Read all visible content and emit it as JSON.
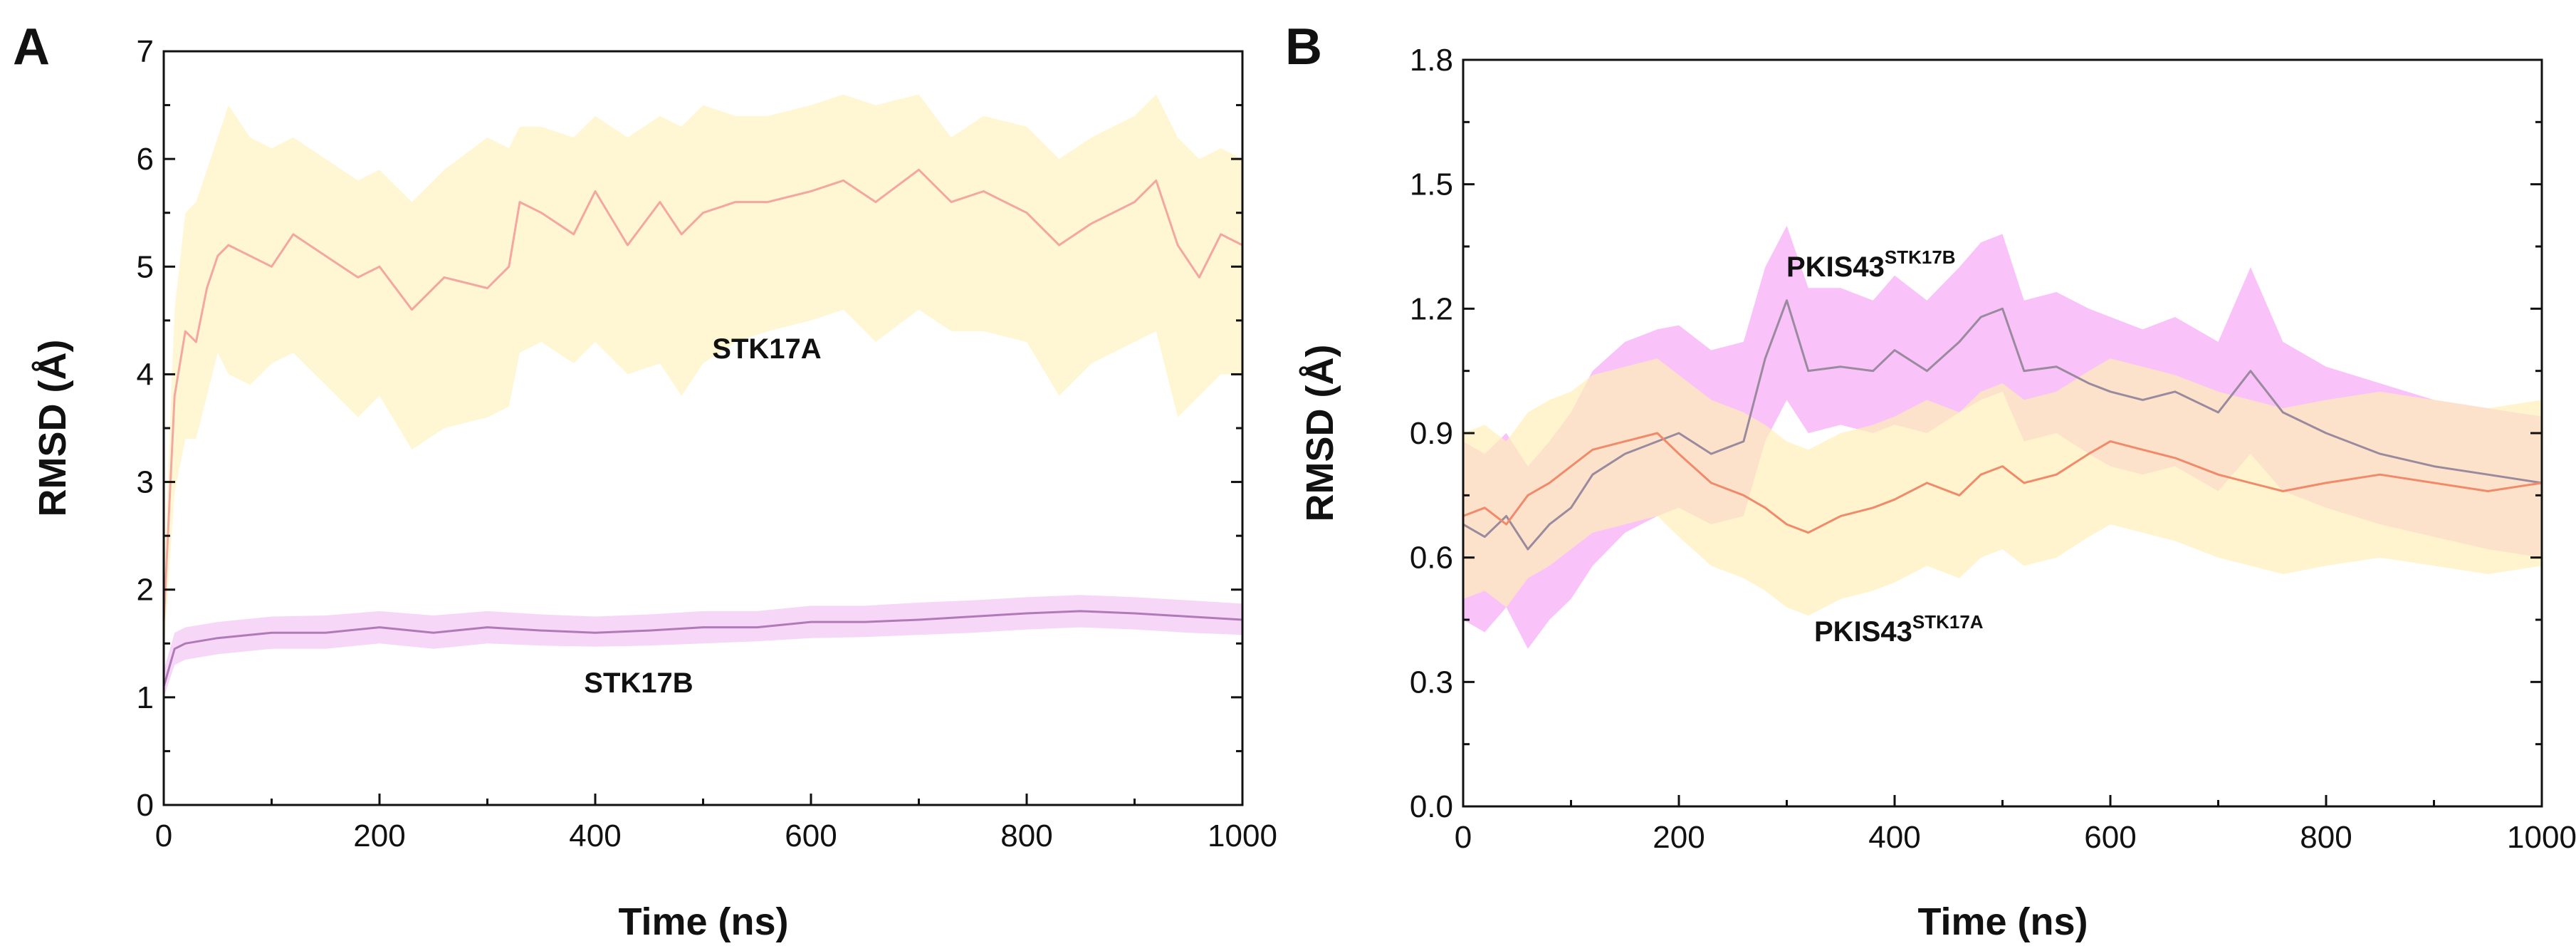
{
  "chart_data": [
    {
      "type": "line",
      "panel_label": "A",
      "title": "",
      "xlabel": "Time (ns)",
      "ylabel": "RMSD (Å)",
      "xlim": [
        0,
        1000
      ],
      "ylim": [
        0,
        7
      ],
      "x_ticks": [
        0,
        200,
        400,
        600,
        800,
        1000
      ],
      "x_tick_labels": [
        "0",
        "200",
        "400",
        "600",
        "800",
        "1000"
      ],
      "y_ticks": [
        0,
        1,
        2,
        3,
        4,
        5,
        6,
        7
      ],
      "y_tick_labels": [
        "0",
        "1",
        "2",
        "3",
        "4",
        "5",
        "6",
        "7"
      ],
      "grid": false,
      "series": [
        {
          "name": "STK17A",
          "label": "STK17A",
          "line_color": "#f4a6a0",
          "band_color": "#fff3c2",
          "x": [
            0,
            10,
            20,
            30,
            40,
            50,
            60,
            80,
            100,
            120,
            150,
            180,
            200,
            230,
            260,
            300,
            320,
            330,
            350,
            380,
            400,
            430,
            460,
            480,
            500,
            530,
            560,
            600,
            630,
            660,
            700,
            730,
            760,
            800,
            830,
            860,
            900,
            920,
            940,
            960,
            980,
            1000
          ],
          "values": [
            1.7,
            3.8,
            4.4,
            4.3,
            4.8,
            5.1,
            5.2,
            5.1,
            5.0,
            5.3,
            5.1,
            4.9,
            5.0,
            4.6,
            4.9,
            4.8,
            5.0,
            5.6,
            5.5,
            5.3,
            5.7,
            5.2,
            5.6,
            5.3,
            5.5,
            5.6,
            5.6,
            5.7,
            5.8,
            5.6,
            5.9,
            5.6,
            5.7,
            5.5,
            5.2,
            5.4,
            5.6,
            5.8,
            5.2,
            4.9,
            5.3,
            5.2
          ],
          "band_lower": [
            1.4,
            2.9,
            3.4,
            3.4,
            3.8,
            4.2,
            4.0,
            3.9,
            4.1,
            4.2,
            3.9,
            3.6,
            3.8,
            3.3,
            3.5,
            3.6,
            3.7,
            4.2,
            4.3,
            4.1,
            4.3,
            4.0,
            4.1,
            3.8,
            4.1,
            4.3,
            4.4,
            4.5,
            4.6,
            4.3,
            4.6,
            4.4,
            4.4,
            4.3,
            3.8,
            4.1,
            4.3,
            4.4,
            3.6,
            3.8,
            4.0,
            4.0
          ],
          "band_upper": [
            2.1,
            4.6,
            5.5,
            5.6,
            5.9,
            6.2,
            6.5,
            6.2,
            6.1,
            6.2,
            6.0,
            5.8,
            5.9,
            5.6,
            5.9,
            6.2,
            6.1,
            6.3,
            6.3,
            6.2,
            6.4,
            6.2,
            6.4,
            6.3,
            6.5,
            6.4,
            6.4,
            6.5,
            6.6,
            6.5,
            6.6,
            6.2,
            6.4,
            6.3,
            6.0,
            6.2,
            6.4,
            6.6,
            6.2,
            6.0,
            6.1,
            6.0
          ]
        },
        {
          "name": "STK17B",
          "label": "STK17B",
          "line_color": "#b07ab8",
          "band_color": "#f2c6f4",
          "x": [
            0,
            10,
            20,
            50,
            100,
            150,
            200,
            250,
            300,
            350,
            400,
            450,
            500,
            550,
            600,
            650,
            700,
            750,
            800,
            850,
            900,
            950,
            1000
          ],
          "values": [
            1.1,
            1.45,
            1.5,
            1.55,
            1.6,
            1.6,
            1.65,
            1.6,
            1.65,
            1.62,
            1.6,
            1.62,
            1.65,
            1.65,
            1.7,
            1.7,
            1.72,
            1.75,
            1.78,
            1.8,
            1.78,
            1.75,
            1.72
          ],
          "band_lower": [
            1.0,
            1.3,
            1.35,
            1.4,
            1.45,
            1.45,
            1.5,
            1.45,
            1.5,
            1.48,
            1.47,
            1.48,
            1.5,
            1.52,
            1.55,
            1.56,
            1.58,
            1.6,
            1.63,
            1.65,
            1.63,
            1.6,
            1.58
          ],
          "band_upper": [
            1.25,
            1.6,
            1.65,
            1.7,
            1.75,
            1.76,
            1.8,
            1.76,
            1.8,
            1.77,
            1.75,
            1.77,
            1.8,
            1.8,
            1.85,
            1.85,
            1.88,
            1.9,
            1.93,
            1.95,
            1.93,
            1.9,
            1.87
          ]
        }
      ],
      "annotations": [
        {
          "name": "annotation-stk17a",
          "text": "STK17A",
          "x": 560,
          "y": 4.2
        },
        {
          "name": "annotation-stk17b",
          "text": "STK17B",
          "x": 440,
          "y": 1.0
        }
      ]
    },
    {
      "type": "line",
      "panel_label": "B",
      "title": "",
      "xlabel": "Time (ns)",
      "ylabel": "RMSD (Å)",
      "xlim": [
        0,
        1000
      ],
      "ylim": [
        0,
        1.8
      ],
      "x_ticks": [
        0,
        200,
        400,
        600,
        800,
        1000
      ],
      "x_tick_labels": [
        "0",
        "200",
        "400",
        "600",
        "800",
        "1000"
      ],
      "y_ticks": [
        0,
        0.3,
        0.6,
        0.9,
        1.2,
        1.5,
        1.8
      ],
      "y_tick_labels": [
        "0.0",
        "0.3",
        "0.6",
        "0.9",
        "1.2",
        "1.5",
        "1.8"
      ],
      "grid": false,
      "series": [
        {
          "name": "PKIS43 (STK17B)",
          "label_main": "PKIS43",
          "label_sup": "STK17B",
          "line_color": "#9a8a9e",
          "band_color": "#f6a8f6",
          "x": [
            0,
            20,
            40,
            60,
            80,
            100,
            120,
            150,
            180,
            200,
            230,
            260,
            280,
            300,
            320,
            350,
            380,
            400,
            430,
            460,
            480,
            500,
            520,
            550,
            580,
            600,
            630,
            660,
            700,
            730,
            760,
            800,
            850,
            900,
            950,
            1000
          ],
          "values": [
            0.68,
            0.65,
            0.7,
            0.62,
            0.68,
            0.72,
            0.8,
            0.85,
            0.88,
            0.9,
            0.85,
            0.88,
            1.08,
            1.22,
            1.05,
            1.06,
            1.05,
            1.1,
            1.05,
            1.12,
            1.18,
            1.2,
            1.05,
            1.06,
            1.02,
            1.0,
            0.98,
            1.0,
            0.95,
            1.05,
            0.95,
            0.9,
            0.85,
            0.82,
            0.8,
            0.78
          ],
          "band_lower": [
            0.45,
            0.42,
            0.48,
            0.38,
            0.45,
            0.5,
            0.58,
            0.66,
            0.7,
            0.72,
            0.68,
            0.7,
            0.88,
            0.98,
            0.9,
            0.92,
            0.9,
            0.92,
            0.9,
            0.95,
            0.98,
            1.0,
            0.88,
            0.9,
            0.85,
            0.82,
            0.8,
            0.82,
            0.76,
            0.85,
            0.76,
            0.72,
            0.68,
            0.65,
            0.62,
            0.6
          ],
          "band_upper": [
            0.88,
            0.85,
            0.9,
            0.82,
            0.88,
            0.95,
            1.05,
            1.12,
            1.15,
            1.16,
            1.1,
            1.12,
            1.3,
            1.4,
            1.25,
            1.25,
            1.22,
            1.28,
            1.22,
            1.3,
            1.36,
            1.38,
            1.22,
            1.24,
            1.2,
            1.18,
            1.15,
            1.18,
            1.12,
            1.3,
            1.12,
            1.06,
            1.02,
            0.98,
            0.96,
            0.94
          ]
        },
        {
          "name": "PKIS43 (STK17A)",
          "label_main": "PKIS43",
          "label_sup": "STK17A",
          "line_color": "#f08a6a",
          "band_color": "#ffefb8",
          "x": [
            0,
            20,
            40,
            60,
            80,
            100,
            120,
            150,
            180,
            200,
            230,
            260,
            280,
            300,
            320,
            350,
            380,
            400,
            430,
            460,
            480,
            500,
            520,
            550,
            580,
            600,
            630,
            660,
            700,
            730,
            760,
            800,
            850,
            900,
            950,
            1000
          ],
          "values": [
            0.7,
            0.72,
            0.68,
            0.75,
            0.78,
            0.82,
            0.86,
            0.88,
            0.9,
            0.85,
            0.78,
            0.75,
            0.72,
            0.68,
            0.66,
            0.7,
            0.72,
            0.74,
            0.78,
            0.75,
            0.8,
            0.82,
            0.78,
            0.8,
            0.85,
            0.88,
            0.86,
            0.84,
            0.8,
            0.78,
            0.76,
            0.78,
            0.8,
            0.78,
            0.76,
            0.78
          ],
          "band_lower": [
            0.5,
            0.52,
            0.48,
            0.55,
            0.58,
            0.62,
            0.66,
            0.68,
            0.7,
            0.65,
            0.58,
            0.55,
            0.52,
            0.48,
            0.46,
            0.5,
            0.52,
            0.54,
            0.58,
            0.55,
            0.6,
            0.62,
            0.58,
            0.6,
            0.65,
            0.68,
            0.66,
            0.64,
            0.6,
            0.58,
            0.56,
            0.58,
            0.6,
            0.58,
            0.56,
            0.58
          ],
          "band_upper": [
            0.9,
            0.92,
            0.88,
            0.95,
            0.98,
            1.0,
            1.04,
            1.06,
            1.08,
            1.04,
            0.98,
            0.95,
            0.92,
            0.88,
            0.86,
            0.9,
            0.92,
            0.94,
            0.98,
            0.95,
            1.0,
            1.02,
            0.98,
            1.0,
            1.05,
            1.08,
            1.06,
            1.04,
            1.0,
            0.98,
            0.96,
            0.98,
            1.0,
            0.98,
            0.96,
            0.98
          ]
        }
      ],
      "annotations": [
        {
          "name": "annotation-pkis43-stk17b",
          "text": "PKIS43",
          "sup": "STK17B",
          "x": 440,
          "y": 1.25
        },
        {
          "name": "annotation-pkis43-stk17a",
          "text": "PKIS43",
          "sup": "STK17A",
          "x": 460,
          "y": 0.41
        }
      ]
    }
  ]
}
